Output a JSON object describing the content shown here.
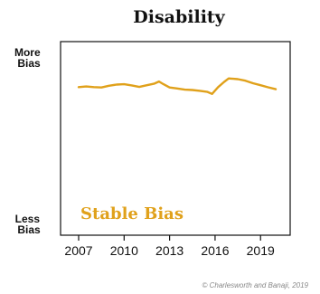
{
  "chart_data": {
    "type": "line",
    "title": "Disability",
    "ylabel_top": "More Bias",
    "ylabel_bottom": "Less Bias",
    "annotation": "Stable Bias",
    "credit": "© Charlesworth and Banaji, 2019",
    "xlim": [
      2007,
      2020.5
    ],
    "ylim": [
      0,
      100
    ],
    "x_ticks": [
      2007,
      2010,
      2013,
      2016,
      2019
    ],
    "x_tick_labels": [
      "2007",
      "2010",
      "2013",
      "2016",
      "2019"
    ],
    "grid": false,
    "series": [
      {
        "color": "#e0a11b",
        "x": [
          2007.0,
          2007.5,
          2008.0,
          2008.5,
          2009.0,
          2009.5,
          2010.0,
          2010.5,
          2011.0,
          2011.5,
          2012.0,
          2012.3,
          2012.6,
          2013.0,
          2013.5,
          2014.0,
          2014.5,
          2015.0,
          2015.5,
          2015.8,
          2016.2,
          2016.6,
          2016.9,
          2017.2,
          2017.5,
          2018.0,
          2018.5,
          2019.0,
          2019.5,
          2020.0
        ],
        "y": [
          76.5,
          76.8,
          76.5,
          76.3,
          77.2,
          77.8,
          78.0,
          77.4,
          76.6,
          77.5,
          78.3,
          79.4,
          78.0,
          76.3,
          75.8,
          75.2,
          75.0,
          74.6,
          74.0,
          73.0,
          76.5,
          79.2,
          81.0,
          80.8,
          80.6,
          79.8,
          78.5,
          77.5,
          76.4,
          75.4
        ]
      }
    ]
  }
}
